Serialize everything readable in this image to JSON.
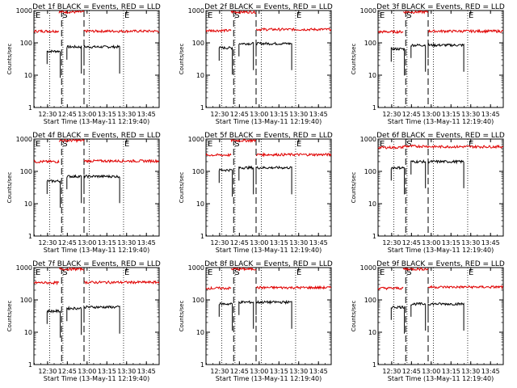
{
  "figure": {
    "ylabel": "Counts/sec",
    "xlabel": "Start Time (13-May-11 12:19:40)",
    "legend_text": "BLACK = Events, RED = LLD",
    "x_tick_labels": [
      "12:30",
      "12:45",
      "13:00",
      "13:15",
      "13:30",
      "13:45"
    ],
    "y_tick_labels": [
      "1",
      "10",
      "100",
      "1000"
    ],
    "marker_S": "S",
    "marker_E": "E",
    "colors": {
      "events": "#000000",
      "lld": "#e00000"
    }
  },
  "chart_data": [
    {
      "type": "line",
      "title": "Det 1f",
      "yscale": "log",
      "ylim": [
        1,
        1000
      ],
      "x_unit": "minutes after 12:19:40",
      "xlim": [
        0,
        95
      ],
      "dotted_lines_x": [
        12,
        22,
        42,
        68
      ],
      "dashed_lines_x": [
        21,
        38
      ],
      "series": [
        {
          "name": "Events",
          "segments": [
            [
              10,
              20,
              55
            ],
            [
              25,
              36,
              75
            ],
            [
              38,
              65,
              75
            ]
          ]
        },
        {
          "name": "LLD",
          "segments": [
            [
              0,
              19,
              230
            ],
            [
              19,
              38,
              900
            ],
            [
              38,
              95,
              230
            ]
          ]
        }
      ]
    },
    {
      "type": "line",
      "title": "Det 2f",
      "yscale": "log",
      "ylim": [
        1,
        1000
      ],
      "x_unit": "minutes after 12:19:40",
      "xlim": [
        0,
        95
      ],
      "dotted_lines_x": [
        12,
        22,
        42,
        68
      ],
      "dashed_lines_x": [
        21,
        38
      ],
      "series": [
        {
          "name": "Events",
          "segments": [
            [
              10,
              20,
              70
            ],
            [
              25,
              36,
              95
            ],
            [
              38,
              65,
              95
            ]
          ]
        },
        {
          "name": "LLD",
          "segments": [
            [
              0,
              19,
              240
            ],
            [
              19,
              38,
              900
            ],
            [
              38,
              95,
              260
            ]
          ]
        }
      ]
    },
    {
      "type": "line",
      "title": "Det 3f",
      "yscale": "log",
      "ylim": [
        1,
        1000
      ],
      "x_unit": "minutes after 12:19:40",
      "xlim": [
        0,
        95
      ],
      "dotted_lines_x": [
        12,
        22,
        42,
        68
      ],
      "dashed_lines_x": [
        21,
        38
      ],
      "series": [
        {
          "name": "Events",
          "segments": [
            [
              10,
              20,
              65
            ],
            [
              25,
              36,
              85
            ],
            [
              38,
              65,
              85
            ]
          ]
        },
        {
          "name": "LLD",
          "segments": [
            [
              0,
              19,
              220
            ],
            [
              19,
              38,
              900
            ],
            [
              38,
              95,
              230
            ]
          ]
        }
      ]
    },
    {
      "type": "line",
      "title": "Det 4f",
      "yscale": "log",
      "ylim": [
        1,
        1000
      ],
      "x_unit": "minutes after 12:19:40",
      "xlim": [
        0,
        95
      ],
      "dotted_lines_x": [
        12,
        22,
        42,
        68
      ],
      "dashed_lines_x": [
        21,
        38
      ],
      "series": [
        {
          "name": "Events",
          "segments": [
            [
              10,
              20,
              50
            ],
            [
              25,
              36,
              70
            ],
            [
              38,
              65,
              70
            ]
          ]
        },
        {
          "name": "LLD",
          "segments": [
            [
              0,
              19,
              200
            ],
            [
              19,
              38,
              900
            ],
            [
              38,
              95,
              210
            ]
          ]
        }
      ]
    },
    {
      "type": "line",
      "title": "Det 5f",
      "yscale": "log",
      "ylim": [
        1,
        1000
      ],
      "x_unit": "minutes after 12:19:40",
      "xlim": [
        0,
        95
      ],
      "dotted_lines_x": [
        12,
        22,
        42,
        68
      ],
      "dashed_lines_x": [
        21,
        38
      ],
      "series": [
        {
          "name": "Events",
          "segments": [
            [
              10,
              20,
              110
            ],
            [
              25,
              36,
              130
            ],
            [
              38,
              65,
              130
            ]
          ]
        },
        {
          "name": "LLD",
          "segments": [
            [
              0,
              19,
              320
            ],
            [
              19,
              38,
              900
            ],
            [
              38,
              95,
              330
            ]
          ]
        }
      ]
    },
    {
      "type": "line",
      "title": "Det 6f",
      "yscale": "log",
      "ylim": [
        1,
        1000
      ],
      "x_unit": "minutes after 12:19:40",
      "xlim": [
        0,
        95
      ],
      "dotted_lines_x": [
        12,
        22,
        42,
        68
      ],
      "dashed_lines_x": [
        21,
        38
      ],
      "series": [
        {
          "name": "Events",
          "segments": [
            [
              10,
              20,
              130
            ],
            [
              25,
              36,
              200
            ],
            [
              38,
              65,
              200
            ]
          ]
        },
        {
          "name": "LLD",
          "segments": [
            [
              0,
              19,
              550
            ],
            [
              19,
              38,
              600
            ],
            [
              38,
              95,
              580
            ]
          ]
        }
      ]
    },
    {
      "type": "line",
      "title": "Det 7f",
      "yscale": "log",
      "ylim": [
        1,
        1000
      ],
      "x_unit": "minutes after 12:19:40",
      "xlim": [
        0,
        95
      ],
      "dotted_lines_x": [
        12,
        22,
        42,
        68
      ],
      "dashed_lines_x": [
        21,
        38
      ],
      "series": [
        {
          "name": "Events",
          "segments": [
            [
              10,
              20,
              45
            ],
            [
              25,
              36,
              55
            ],
            [
              38,
              65,
              60
            ]
          ]
        },
        {
          "name": "LLD",
          "segments": [
            [
              0,
              19,
              340
            ],
            [
              19,
              38,
              900
            ],
            [
              38,
              95,
              350
            ]
          ]
        }
      ]
    },
    {
      "type": "line",
      "title": "Det 8f",
      "yscale": "log",
      "ylim": [
        1,
        1000
      ],
      "x_unit": "minutes after 12:19:40",
      "xlim": [
        0,
        95
      ],
      "dotted_lines_x": [
        12,
        22,
        42,
        68
      ],
      "dashed_lines_x": [
        21,
        38
      ],
      "series": [
        {
          "name": "Events",
          "segments": [
            [
              10,
              20,
              75
            ],
            [
              25,
              36,
              85
            ],
            [
              38,
              65,
              85
            ]
          ]
        },
        {
          "name": "LLD",
          "segments": [
            [
              0,
              19,
              230
            ],
            [
              19,
              38,
              900
            ],
            [
              38,
              95,
              240
            ]
          ]
        }
      ]
    },
    {
      "type": "line",
      "title": "Det 9f",
      "yscale": "log",
      "ylim": [
        1,
        1000
      ],
      "x_unit": "minutes after 12:19:40",
      "xlim": [
        0,
        95
      ],
      "dotted_lines_x": [
        12,
        22,
        42,
        68
      ],
      "dashed_lines_x": [
        21,
        38
      ],
      "series": [
        {
          "name": "Events",
          "segments": [
            [
              10,
              20,
              60
            ],
            [
              25,
              36,
              75
            ],
            [
              38,
              65,
              75
            ]
          ]
        },
        {
          "name": "LLD",
          "segments": [
            [
              0,
              19,
              230
            ],
            [
              19,
              38,
              900
            ],
            [
              38,
              95,
              250
            ]
          ]
        }
      ]
    }
  ]
}
